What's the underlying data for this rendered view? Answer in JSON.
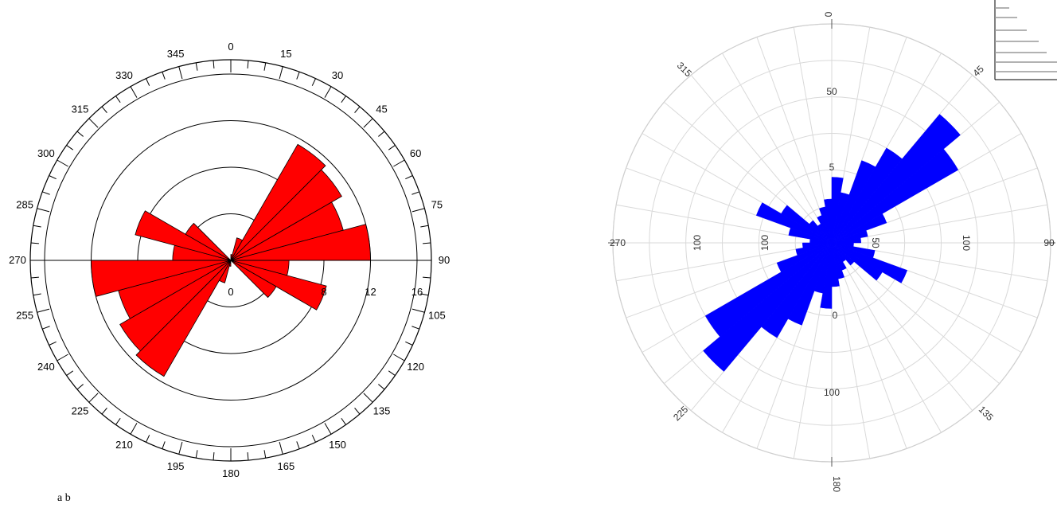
{
  "colors": {
    "left_fill": "#ff0000",
    "right_fill": "#0000ff",
    "grid_b": "#d9d9d9"
  },
  "caption": "a b",
  "chart_data": [
    {
      "type": "rose",
      "bin_width_deg": 15,
      "bins_start_deg": [
        0,
        15,
        30,
        45,
        60,
        75,
        90,
        105,
        120,
        135,
        150,
        165,
        180,
        195,
        210,
        225,
        240,
        255,
        270,
        285,
        300,
        315,
        330,
        345
      ],
      "values": [
        0.5,
        2,
        11.5,
        11,
        10,
        12,
        5,
        8.5,
        4.5,
        0,
        0,
        0,
        0.5,
        2,
        11.5,
        11,
        10,
        12,
        5,
        8.5,
        4.5,
        0,
        0,
        0
      ],
      "radial_ticks": [
        0,
        8,
        12,
        16
      ],
      "radial_max": 16,
      "angle_labels": [
        "0",
        "15",
        "30",
        "45",
        "60",
        "75",
        "90",
        "105",
        "120",
        "135",
        "150",
        "165",
        "180",
        "195",
        "210",
        "225",
        "240",
        "255",
        "270",
        "285",
        "300",
        "315",
        "330",
        "345"
      ],
      "fill": "red"
    },
    {
      "type": "rose",
      "bin_width_deg": 10,
      "bins_start_deg": [
        0,
        10,
        20,
        30,
        40,
        50,
        60,
        70,
        80,
        90,
        100,
        110,
        120,
        130,
        140,
        150,
        160,
        170,
        180,
        190,
        200,
        210,
        220,
        230,
        240,
        250,
        260,
        270,
        280,
        290,
        300,
        310,
        320,
        330,
        340,
        350
      ],
      "values": [
        45,
        35,
        60,
        75,
        115,
        100,
        40,
        25,
        20,
        15,
        30,
        55,
        40,
        20,
        15,
        20,
        25,
        30,
        45,
        35,
        60,
        75,
        115,
        100,
        40,
        25,
        20,
        15,
        30,
        55,
        40,
        20,
        15,
        20,
        25,
        30
      ],
      "radial_ticks": [
        50,
        100
      ],
      "radial_max": 150,
      "angle_labels": [
        "0",
        "45",
        "90",
        "135",
        "180",
        "225",
        "270",
        "315"
      ],
      "radial_labels": [
        "50",
        "100",
        "5",
        "100",
        "50",
        "100",
        "0",
        "100"
      ],
      "fill": "blue"
    }
  ]
}
